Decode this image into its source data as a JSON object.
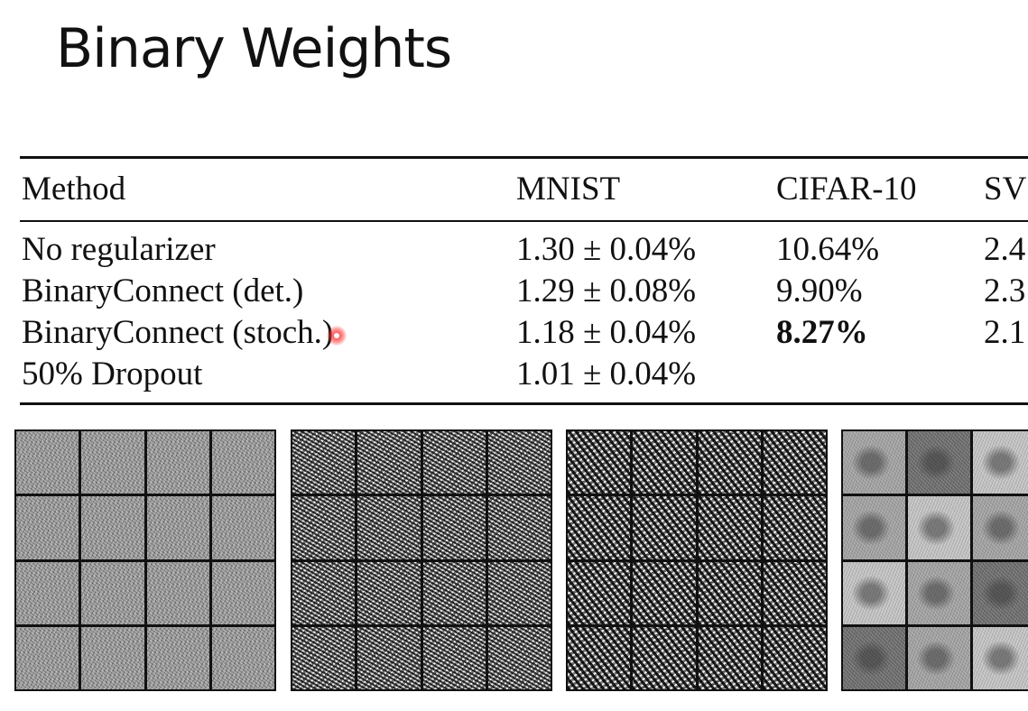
{
  "slide": {
    "title": "Binary Weights"
  },
  "table": {
    "headers": [
      "Method",
      "MNIST",
      "CIFAR-10",
      "SV"
    ],
    "rows": [
      {
        "method": "No regularizer",
        "mnist": "1.30 ± 0.04%",
        "cifar10": "10.64%",
        "svhn": "2.4"
      },
      {
        "method": "BinaryConnect (det.)",
        "mnist": "1.29 ± 0.08%",
        "cifar10": "9.90%",
        "svhn": "2.3"
      },
      {
        "method": "BinaryConnect (stoch.)",
        "mnist": "1.18 ± 0.04%",
        "cifar10": "8.27%",
        "svhn": "2.1"
      },
      {
        "method": "50% Dropout",
        "mnist": "1.01 ± 0.04%",
        "cifar10": "",
        "svhn": ""
      }
    ],
    "bold_cell": "rows.2.cifar10"
  },
  "cursor": {
    "color": "#ff2828"
  },
  "figures": [
    {
      "name": "weights-no-regularizer",
      "tone": "gray-noise"
    },
    {
      "name": "weights-binaryconnect-det",
      "tone": "black-white-noise"
    },
    {
      "name": "weights-binaryconnect-stoch",
      "tone": "black-white-strokes"
    },
    {
      "name": "weights-dropout",
      "tone": "gray-blobs"
    }
  ]
}
